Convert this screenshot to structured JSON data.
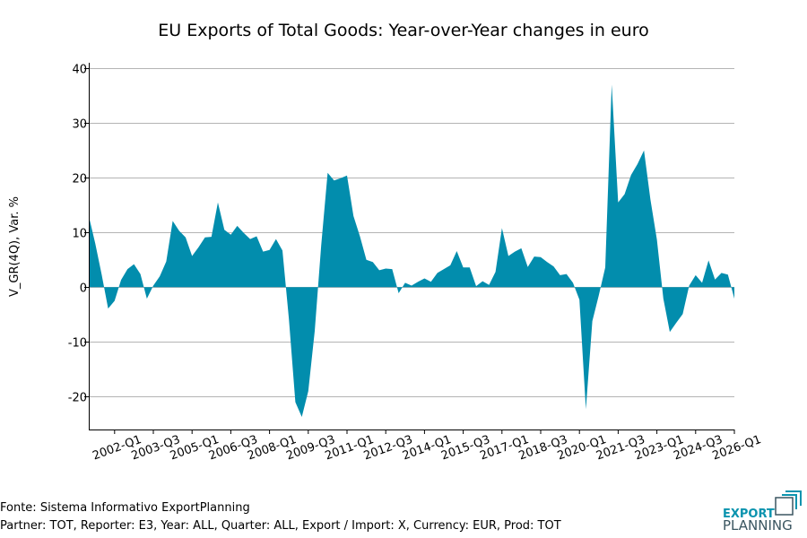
{
  "chart_data": {
    "type": "area",
    "title": "EU Exports of Total Goods: Year-over-Year changes in euro",
    "xlabel": "",
    "ylabel": "V_GR(4Q), Var. %",
    "ylim": [
      -26,
      41
    ],
    "yticks": [
      40,
      30,
      20,
      10,
      0,
      -10,
      -20
    ],
    "xtick_labels": [
      "2002-Q1",
      "2003-Q3",
      "2005-Q1",
      "2006-Q3",
      "2008-Q1",
      "2009-Q3",
      "2011-Q1",
      "2012-Q3",
      "2014-Q1",
      "2015-Q3",
      "2017-Q1",
      "2018-Q3",
      "2020-Q1",
      "2021-Q3",
      "2023-Q1",
      "2024-Q3",
      "2026-Q1"
    ],
    "grid": "horizontal",
    "fill_color": "#028DAD",
    "x": [
      "2001-Q1",
      "2001-Q2",
      "2001-Q3",
      "2001-Q4",
      "2002-Q1",
      "2002-Q2",
      "2002-Q3",
      "2002-Q4",
      "2003-Q1",
      "2003-Q2",
      "2003-Q3",
      "2003-Q4",
      "2004-Q1",
      "2004-Q2",
      "2004-Q3",
      "2004-Q4",
      "2005-Q1",
      "2005-Q2",
      "2005-Q3",
      "2005-Q4",
      "2006-Q1",
      "2006-Q2",
      "2006-Q3",
      "2006-Q4",
      "2007-Q1",
      "2007-Q2",
      "2007-Q3",
      "2007-Q4",
      "2008-Q1",
      "2008-Q2",
      "2008-Q3",
      "2008-Q4",
      "2009-Q1",
      "2009-Q2",
      "2009-Q3",
      "2009-Q4",
      "2010-Q1",
      "2010-Q2",
      "2010-Q3",
      "2010-Q4",
      "2011-Q1",
      "2011-Q2",
      "2011-Q3",
      "2011-Q4",
      "2012-Q1",
      "2012-Q2",
      "2012-Q3",
      "2012-Q4",
      "2013-Q1",
      "2013-Q2",
      "2013-Q3",
      "2013-Q4",
      "2014-Q1",
      "2014-Q2",
      "2014-Q3",
      "2014-Q4",
      "2015-Q1",
      "2015-Q2",
      "2015-Q3",
      "2015-Q4",
      "2016-Q1",
      "2016-Q2",
      "2016-Q3",
      "2016-Q4",
      "2017-Q1",
      "2017-Q2",
      "2017-Q3",
      "2017-Q4",
      "2018-Q1",
      "2018-Q2",
      "2018-Q3",
      "2018-Q4",
      "2019-Q1",
      "2019-Q2",
      "2019-Q3",
      "2019-Q4",
      "2020-Q1",
      "2020-Q2",
      "2020-Q3",
      "2020-Q4",
      "2021-Q1",
      "2021-Q2",
      "2021-Q3",
      "2021-Q4",
      "2022-Q1",
      "2022-Q2",
      "2022-Q3",
      "2022-Q4",
      "2023-Q1",
      "2023-Q2",
      "2023-Q3",
      "2023-Q4",
      "2024-Q1",
      "2024-Q2",
      "2024-Q3",
      "2024-Q4",
      "2025-Q1",
      "2025-Q2",
      "2025-Q3",
      "2025-Q4",
      "2026-Q1"
    ],
    "values": [
      13,
      8,
      2.3,
      -3.9,
      -2.5,
      1.3,
      3.3,
      4.2,
      2.4,
      -2.1,
      0.3,
      2.0,
      4.7,
      12.1,
      10.3,
      9.1,
      5.7,
      7.3,
      9.1,
      9.2,
      15.5,
      10.5,
      9.6,
      11.2,
      9.9,
      8.8,
      9.3,
      6.5,
      6.8,
      8.8,
      6.7,
      -5.8,
      -21,
      -23.7,
      -19,
      -8,
      7.6,
      20.9,
      19.5,
      19.9,
      20.4,
      13,
      9.3,
      5,
      4.6,
      3.1,
      3.4,
      3.3,
      -1.1,
      0.8,
      0.3,
      1.0,
      1.6,
      1.0,
      2.6,
      3.3,
      4.0,
      6.6,
      3.6,
      3.6,
      0.2,
      1.1,
      0.4,
      2.8,
      10.8,
      5.7,
      6.5,
      7.1,
      3.7,
      5.6,
      5.5,
      4.6,
      3.8,
      2.2,
      2.4,
      0.8,
      -2.3,
      -22.3,
      -6.2,
      -1.5,
      3.6,
      37,
      15.5,
      17,
      20.5,
      22.5,
      25,
      16,
      8.7,
      -2.1,
      -8.2,
      -6.5,
      -4.9,
      0.3,
      2.2,
      0.8,
      4.9,
      1.4,
      2.6,
      2.3,
      -2.1
    ]
  },
  "footer": {
    "source": "Fonte: Sistema Informativo ExportPlanning",
    "filters": "Partner: TOT, Reporter: E3, Year: ALL, Quarter: ALL, Export / Import: X, Currency: EUR, Prod: TOT"
  },
  "logo": {
    "line1": "EXPORT",
    "line2": "PLANNING",
    "color": "#0A93AE",
    "text_color": "#3A5560"
  }
}
